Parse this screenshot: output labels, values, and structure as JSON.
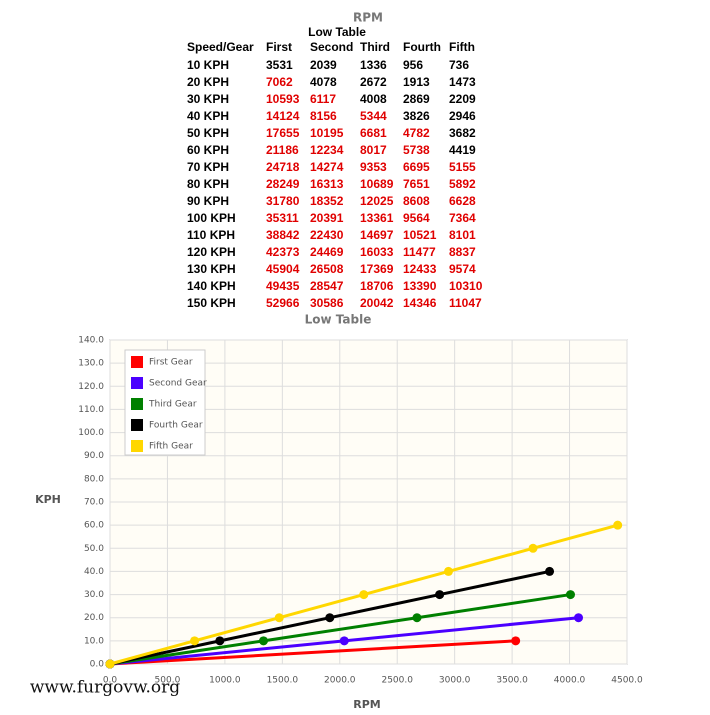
{
  "header": {
    "axis_title": "RPM",
    "title": "Low Table"
  },
  "table": {
    "header": [
      "Speed/Gear",
      "First",
      "Second",
      "Third",
      "Fourth",
      "Fifth"
    ],
    "rows": [
      [
        "10 KPH",
        3531,
        2039,
        1336,
        956,
        736
      ],
      [
        "20 KPH",
        7062,
        4078,
        2672,
        1913,
        1473
      ],
      [
        "30 KPH",
        10593,
        6117,
        4008,
        2869,
        2209
      ],
      [
        "40 KPH",
        14124,
        8156,
        5344,
        3826,
        2946
      ],
      [
        "50 KPH",
        17655,
        10195,
        6681,
        4782,
        3682
      ],
      [
        "60 KPH",
        21186,
        12234,
        8017,
        5738,
        4419
      ],
      [
        "70 KPH",
        24718,
        14274,
        9353,
        6695,
        5155
      ],
      [
        "80 KPH",
        28249,
        16313,
        10689,
        7651,
        5892
      ],
      [
        "90 KPH",
        31780,
        18352,
        12025,
        8608,
        6628
      ],
      [
        "100 KPH",
        35311,
        20391,
        13361,
        9564,
        7364
      ],
      [
        "110 KPH",
        38842,
        22430,
        14697,
        10521,
        8101
      ],
      [
        "120 KPH",
        42373,
        24469,
        16033,
        11477,
        8837
      ],
      [
        "130 KPH",
        45904,
        26508,
        17369,
        12433,
        9574
      ],
      [
        "140 KPH",
        49435,
        28547,
        18706,
        13390,
        10310
      ],
      [
        "150 KPH",
        52966,
        30586,
        20042,
        14346,
        11047
      ]
    ],
    "highlight": [
      [
        false,
        false,
        false,
        false,
        false,
        false
      ],
      [
        false,
        true,
        false,
        false,
        false,
        false
      ],
      [
        false,
        true,
        true,
        false,
        false,
        false
      ],
      [
        false,
        true,
        true,
        true,
        false,
        false
      ],
      [
        false,
        true,
        true,
        true,
        true,
        false
      ],
      [
        false,
        true,
        true,
        true,
        true,
        false
      ],
      [
        false,
        true,
        true,
        true,
        true,
        true
      ],
      [
        false,
        true,
        true,
        true,
        true,
        true
      ],
      [
        false,
        true,
        true,
        true,
        true,
        true
      ],
      [
        false,
        true,
        true,
        true,
        true,
        true
      ],
      [
        false,
        true,
        true,
        true,
        true,
        true
      ],
      [
        false,
        true,
        true,
        true,
        true,
        true
      ],
      [
        false,
        true,
        true,
        true,
        true,
        true
      ],
      [
        false,
        true,
        true,
        true,
        true,
        true
      ],
      [
        false,
        true,
        true,
        true,
        true,
        true
      ]
    ],
    "highlight_color": "#e00000"
  },
  "chart_data": {
    "type": "line",
    "title": "Low Table",
    "x_label": "RPM",
    "y_label": "KPH",
    "xlim": [
      0,
      4500
    ],
    "ylim": [
      0,
      140
    ],
    "xticks": [
      {
        "value": 0,
        "label": "0.0"
      },
      {
        "value": 500,
        "label": "500.0"
      },
      {
        "value": 1000,
        "label": "1000.0"
      },
      {
        "value": 1500,
        "label": "1500.0"
      },
      {
        "value": 2000,
        "label": "2000.0"
      },
      {
        "value": 2500,
        "label": "2500.0"
      },
      {
        "value": 3000,
        "label": "3000.0"
      },
      {
        "value": 3500,
        "label": "3500.0"
      },
      {
        "value": 4000,
        "label": "4000.0"
      },
      {
        "value": 4500,
        "label": "4500.0"
      }
    ],
    "yticks": [
      {
        "value": 0,
        "label": "0.0"
      },
      {
        "value": 10,
        "label": "10.0"
      },
      {
        "value": 20,
        "label": "20.0"
      },
      {
        "value": 30,
        "label": "30.0"
      },
      {
        "value": 40,
        "label": "40.0"
      },
      {
        "value": 50,
        "label": "50.0"
      },
      {
        "value": 60,
        "label": "60.0"
      },
      {
        "value": 70,
        "label": "70.0"
      },
      {
        "value": 80,
        "label": "80.0"
      },
      {
        "value": 90,
        "label": "90.0"
      },
      {
        "value": 100,
        "label": "100.0"
      },
      {
        "value": 110,
        "label": "110.0"
      },
      {
        "value": 120,
        "label": "120.0"
      },
      {
        "value": 130,
        "label": "130.0"
      },
      {
        "value": 140,
        "label": "140.0"
      }
    ],
    "grid": true,
    "legend": "top-left",
    "series": [
      {
        "name": "First Gear",
        "color": "#ff0000",
        "x": [
          0,
          3531
        ],
        "values": [
          0,
          10
        ]
      },
      {
        "name": "Second Gear",
        "color": "#4b00ff",
        "x": [
          0,
          2039,
          4078
        ],
        "values": [
          0,
          10,
          20
        ]
      },
      {
        "name": "Third Gear",
        "color": "#008000",
        "x": [
          0,
          1336,
          2672,
          4008
        ],
        "values": [
          0,
          10,
          20,
          30
        ]
      },
      {
        "name": "Fourth Gear",
        "color": "#000000",
        "x": [
          0,
          956,
          1913,
          2869,
          3826
        ],
        "values": [
          0,
          10,
          20,
          30,
          40
        ]
      },
      {
        "name": "Fifth Gear",
        "color": "#ffd700",
        "x": [
          0,
          736,
          1473,
          2209,
          2946,
          3682,
          4419
        ],
        "values": [
          0,
          10,
          20,
          30,
          40,
          50,
          60
        ]
      }
    ],
    "watermark": "www.furgovw.org"
  }
}
